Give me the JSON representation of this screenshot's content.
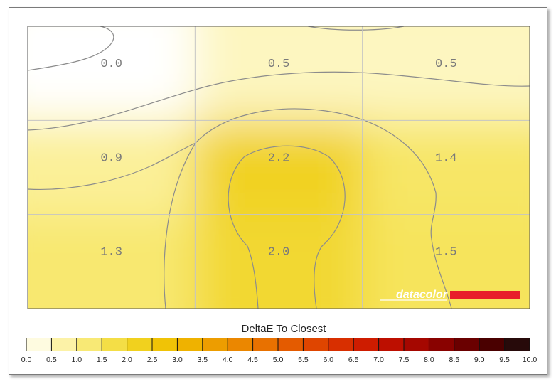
{
  "chart_data": {
    "type": "heatmap",
    "title": "",
    "grid": true,
    "rows": 3,
    "cols": 3,
    "values": [
      [
        0.0,
        0.5,
        0.5
      ],
      [
        0.9,
        2.2,
        1.4
      ],
      [
        1.3,
        2.0,
        1.5
      ]
    ],
    "cell_labels": [
      [
        "0.0",
        "0.5",
        "0.5"
      ],
      [
        "0.9",
        "2.2",
        "1.4"
      ],
      [
        "1.3",
        "2.0",
        "1.5"
      ]
    ],
    "contour_lines": true,
    "colorbar": {
      "title": "DeltaE To Closest",
      "range": [
        0.0,
        10.0
      ],
      "ticks": [
        "0.0",
        "0.5",
        "1.0",
        "1.5",
        "2.0",
        "2.5",
        "3.0",
        "3.5",
        "4.0",
        "4.5",
        "5.0",
        "5.5",
        "6.0",
        "6.5",
        "7.0",
        "7.5",
        "8.0",
        "8.5",
        "9.0",
        "9.5",
        "10.0"
      ],
      "colors": [
        "#ffffff",
        "#fdf6c0",
        "#faee8e",
        "#f6e45c",
        "#f2d830",
        "#f0ca0c",
        "#f0bc00",
        "#eea800",
        "#ec9200",
        "#ea7c00",
        "#e66600",
        "#e25000",
        "#dc3a00",
        "#d42400",
        "#c81400",
        "#b20a00",
        "#980400",
        "#7a0000",
        "#5a0000",
        "#3a0000",
        "#141414"
      ]
    }
  },
  "logo": {
    "text": "datacolor",
    "accent": "#e8202a"
  }
}
